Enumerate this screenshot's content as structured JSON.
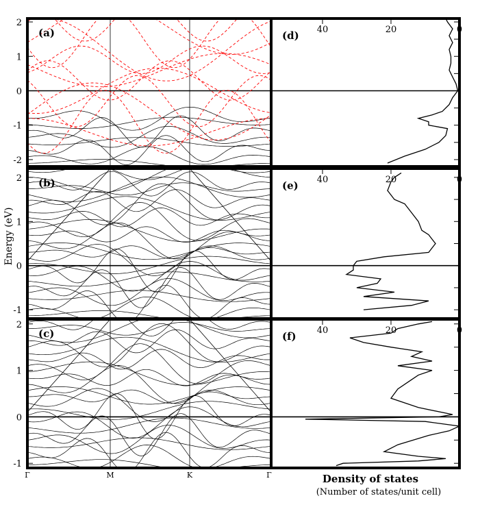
{
  "figure": {
    "ylabel": "Energy (eV)",
    "dos_title": "Density of states",
    "dos_subtitle": "(Number of states/unit cell)"
  },
  "chart_data": [
    {
      "type": "line",
      "panel": "(a)",
      "x_ticks": [
        "Γ",
        "M",
        "K",
        "Γ"
      ],
      "ylim": [
        -2.2,
        2.1
      ],
      "y_ticks": [
        -2,
        -1,
        0,
        1,
        2
      ],
      "series_colors": {
        "solid": "#000000",
        "dashed": "#ff0000"
      }
    },
    {
      "type": "line",
      "panel": "(b)",
      "x_ticks": [
        "Γ",
        "M",
        "K",
        "Γ"
      ],
      "ylim": [
        -1.2,
        2.2
      ],
      "y_ticks": [
        -1,
        0,
        1,
        2
      ]
    },
    {
      "type": "line",
      "panel": "(c)",
      "x_ticks": [
        "Γ",
        "M",
        "K",
        "Γ"
      ],
      "ylim": [
        -1.1,
        2.1
      ],
      "y_ticks": [
        -1,
        0,
        1,
        2
      ]
    },
    {
      "type": "line",
      "panel": "(d)",
      "x_ticks": [
        40,
        20,
        0
      ],
      "xlim": [
        55,
        0
      ],
      "ylim": [
        -2.2,
        2.1
      ],
      "dos": [
        [
          -2.1,
          21
        ],
        [
          -1.9,
          16
        ],
        [
          -1.7,
          10
        ],
        [
          -1.5,
          6
        ],
        [
          -1.3,
          4
        ],
        [
          -1.1,
          3.5
        ],
        [
          -1.0,
          9
        ],
        [
          -0.9,
          9
        ],
        [
          -0.8,
          12
        ],
        [
          -0.7,
          8
        ],
        [
          -0.6,
          5
        ],
        [
          -0.4,
          3
        ],
        [
          -0.2,
          2
        ],
        [
          0,
          0.5
        ],
        [
          0.2,
          1
        ],
        [
          0.4,
          2
        ],
        [
          0.6,
          3
        ],
        [
          0.8,
          2.5
        ],
        [
          1.0,
          2.5
        ],
        [
          1.2,
          3
        ],
        [
          1.4,
          2
        ],
        [
          1.6,
          3
        ],
        [
          1.8,
          2
        ],
        [
          2.0,
          3.5
        ],
        [
          2.1,
          4
        ]
      ]
    },
    {
      "type": "line",
      "panel": "(e)",
      "x_ticks": [
        40,
        20,
        0
      ],
      "xlim": [
        55,
        0
      ],
      "ylim": [
        -1.2,
        2.2
      ],
      "dos": [
        [
          -1.0,
          28
        ],
        [
          -0.9,
          14
        ],
        [
          -0.8,
          9
        ],
        [
          -0.7,
          28
        ],
        [
          -0.6,
          19
        ],
        [
          -0.5,
          30
        ],
        [
          -0.4,
          24
        ],
        [
          -0.3,
          23
        ],
        [
          -0.2,
          33
        ],
        [
          -0.1,
          31
        ],
        [
          0.0,
          31
        ],
        [
          0.1,
          30
        ],
        [
          0.2,
          22
        ],
        [
          0.3,
          9
        ],
        [
          0.4,
          8
        ],
        [
          0.5,
          7
        ],
        [
          0.6,
          8
        ],
        [
          0.7,
          9
        ],
        [
          0.8,
          11
        ],
        [
          1.0,
          12
        ],
        [
          1.2,
          14
        ],
        [
          1.4,
          16
        ],
        [
          1.5,
          19
        ],
        [
          1.7,
          21
        ],
        [
          1.9,
          20
        ],
        [
          2.0,
          19
        ],
        [
          2.1,
          17
        ]
      ]
    },
    {
      "type": "line",
      "panel": "(f)",
      "x_ticks": [
        40,
        20,
        0
      ],
      "xlim": [
        55,
        0
      ],
      "ylim": [
        -1.1,
        2.1
      ],
      "dos": [
        [
          -1.05,
          36
        ],
        [
          -1.0,
          34
        ],
        [
          -0.95,
          12
        ],
        [
          -0.9,
          4
        ],
        [
          -0.85,
          12
        ],
        [
          -0.75,
          22
        ],
        [
          -0.6,
          18
        ],
        [
          -0.4,
          9
        ],
        [
          -0.3,
          3
        ],
        [
          -0.2,
          0
        ],
        [
          -0.1,
          10
        ],
        [
          -0.05,
          45
        ],
        [
          0.0,
          6
        ],
        [
          0.05,
          2
        ],
        [
          0.2,
          12
        ],
        [
          0.4,
          20
        ],
        [
          0.6,
          18
        ],
        [
          0.8,
          14
        ],
        [
          0.9,
          12
        ],
        [
          1.0,
          8
        ],
        [
          1.1,
          18
        ],
        [
          1.2,
          8
        ],
        [
          1.3,
          14
        ],
        [
          1.4,
          11
        ],
        [
          1.5,
          20
        ],
        [
          1.6,
          28
        ],
        [
          1.7,
          32
        ],
        [
          1.8,
          20
        ],
        [
          1.9,
          18
        ],
        [
          2.0,
          12
        ],
        [
          2.05,
          8
        ]
      ]
    }
  ]
}
